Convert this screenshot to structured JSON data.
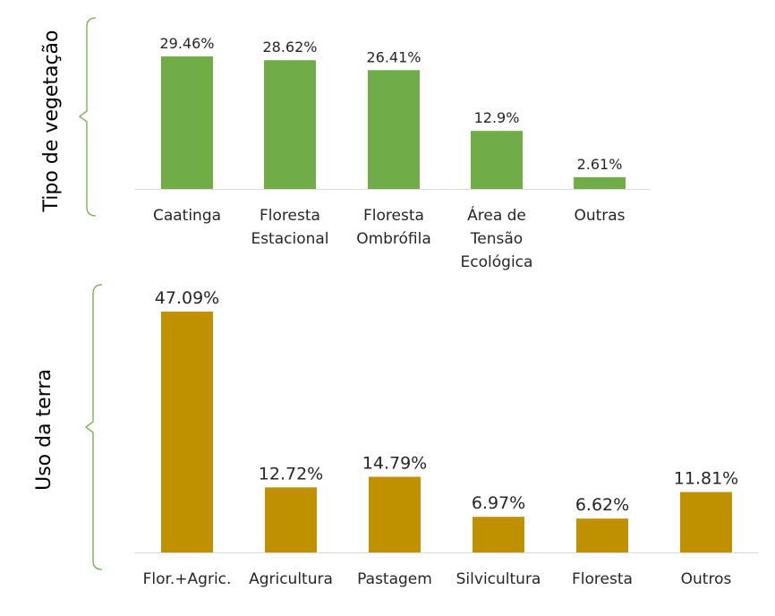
{
  "chart_data": [
    {
      "type": "bar",
      "ylabel": "Tipo de vegetação",
      "categories": [
        [
          "Caatinga"
        ],
        [
          "Floresta",
          "Estacional"
        ],
        [
          "Floresta",
          "Ombrófila"
        ],
        [
          "Área de",
          "Tensão",
          "Ecológica"
        ],
        [
          "Outras"
        ]
      ],
      "values": [
        29.46,
        28.62,
        26.41,
        12.9,
        2.61
      ],
      "value_labels": [
        "29.46%",
        "28.62%",
        "26.41%",
        "12.9%",
        "2.61%"
      ],
      "bar_color": "#70ad47",
      "bracket_color": "#70ad47"
    },
    {
      "type": "bar",
      "ylabel": "Uso da terra",
      "categories": [
        [
          "Flor.+Agric."
        ],
        [
          "Agricultura"
        ],
        [
          "Pastagem"
        ],
        [
          "Silvicultura"
        ],
        [
          "Floresta"
        ],
        [
          "Outros"
        ]
      ],
      "values": [
        47.09,
        12.72,
        14.79,
        6.97,
        6.62,
        11.81
      ],
      "value_labels": [
        "47.09%",
        "12.72%",
        "14.79%",
        "6.97%",
        "6.62%",
        "11.81%"
      ],
      "bar_color": "#bf9000",
      "bracket_color": "#70ad47"
    }
  ]
}
